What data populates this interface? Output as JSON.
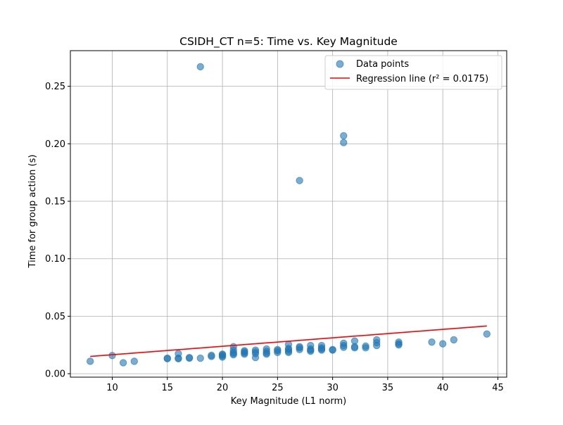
{
  "chart_data": {
    "type": "scatter",
    "title": "CSIDH_CT n=5: Time vs. Key Magnitude",
    "xlabel": "Key Magnitude (L1 norm)",
    "ylabel": "Time for group action (s)",
    "xlim": [
      6.2,
      45.8
    ],
    "ylim": [
      -0.003,
      0.281
    ],
    "xticks": [
      10,
      15,
      20,
      25,
      30,
      35,
      40,
      45
    ],
    "yticks": [
      0.0,
      0.05,
      0.1,
      0.15,
      0.2,
      0.25
    ],
    "xtick_labels": [
      "10",
      "15",
      "20",
      "25",
      "30",
      "35",
      "40",
      "45"
    ],
    "ytick_labels": [
      "0.00",
      "0.05",
      "0.10",
      "0.15",
      "0.20",
      "0.25"
    ],
    "grid": true,
    "legend_position": "top-right",
    "series": [
      {
        "name": "Data points",
        "kind": "scatter",
        "color": "#1f77b4",
        "alpha": 0.6,
        "points": [
          [
            8,
            0.0108
          ],
          [
            10,
            0.0158
          ],
          [
            11,
            0.0095
          ],
          [
            12,
            0.0108
          ],
          [
            15,
            0.013
          ],
          [
            15,
            0.0135
          ],
          [
            16,
            0.013
          ],
          [
            16,
            0.0135
          ],
          [
            16,
            0.0175
          ],
          [
            17,
            0.0135
          ],
          [
            17,
            0.014
          ],
          [
            18,
            0.0135
          ],
          [
            18,
            0.267
          ],
          [
            19,
            0.015
          ],
          [
            19,
            0.016
          ],
          [
            20,
            0.0145
          ],
          [
            20,
            0.0155
          ],
          [
            20,
            0.0165
          ],
          [
            20,
            0.017
          ],
          [
            21,
            0.0165
          ],
          [
            21,
            0.0175
          ],
          [
            21,
            0.0185
          ],
          [
            21,
            0.0205
          ],
          [
            21,
            0.0235
          ],
          [
            22,
            0.017
          ],
          [
            22,
            0.018
          ],
          [
            22,
            0.019
          ],
          [
            22,
            0.02
          ],
          [
            23,
            0.014
          ],
          [
            23,
            0.0175
          ],
          [
            23,
            0.019
          ],
          [
            23,
            0.0205
          ],
          [
            24,
            0.017
          ],
          [
            24,
            0.018
          ],
          [
            24,
            0.0195
          ],
          [
            24,
            0.0215
          ],
          [
            25,
            0.0185
          ],
          [
            25,
            0.02
          ],
          [
            25,
            0.021
          ],
          [
            26,
            0.0185
          ],
          [
            26,
            0.0195
          ],
          [
            26,
            0.021
          ],
          [
            26,
            0.022
          ],
          [
            26,
            0.0255
          ],
          [
            27,
            0.021
          ],
          [
            27,
            0.0225
          ],
          [
            27,
            0.0235
          ],
          [
            27,
            0.168
          ],
          [
            28,
            0.0195
          ],
          [
            28,
            0.0205
          ],
          [
            28,
            0.0215
          ],
          [
            28,
            0.0245
          ],
          [
            29,
            0.0205
          ],
          [
            29,
            0.0215
          ],
          [
            29,
            0.0225
          ],
          [
            29,
            0.0245
          ],
          [
            30,
            0.0205
          ],
          [
            30,
            0.021
          ],
          [
            31,
            0.023
          ],
          [
            31,
            0.0245
          ],
          [
            31,
            0.0265
          ],
          [
            31,
            0.201
          ],
          [
            31,
            0.207
          ],
          [
            32,
            0.0225
          ],
          [
            32,
            0.0235
          ],
          [
            32,
            0.0285
          ],
          [
            33,
            0.0225
          ],
          [
            33,
            0.024
          ],
          [
            34,
            0.0245
          ],
          [
            34,
            0.027
          ],
          [
            34,
            0.0295
          ],
          [
            36,
            0.025
          ],
          [
            36,
            0.026
          ],
          [
            36,
            0.0275
          ],
          [
            39,
            0.0275
          ],
          [
            40,
            0.026
          ],
          [
            41,
            0.0295
          ],
          [
            44,
            0.0345
          ]
        ]
      },
      {
        "name": "Regression line (r² = 0.0175)",
        "kind": "line",
        "color": "#ff0000",
        "x": [
          8,
          44
        ],
        "y": [
          0.015,
          0.0415
        ]
      }
    ]
  }
}
